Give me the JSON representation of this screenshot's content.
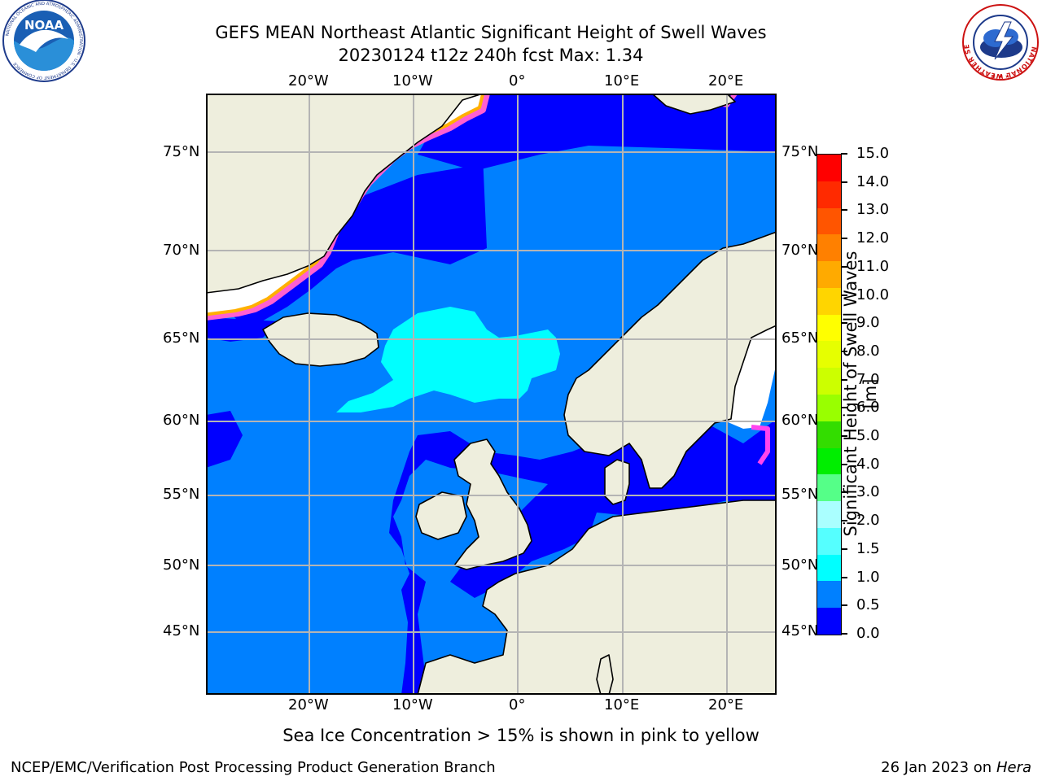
{
  "header": {
    "title_line1": "GEFS MEAN Northeast Atlantic Significant Height of Swell Waves",
    "title_line2": "20230124 t12z 240h fcst   Max: 1.34"
  },
  "logos": {
    "noaa_text": "NOAA",
    "noaa_ring_text": "NATIONAL OCEANIC AND ATMOSPHERIC ADMINISTRATION · U.S. DEPARTMENT OF COMMERCE",
    "nws_ring_text": "NATIONAL WEATHER SERVICE"
  },
  "map": {
    "lon_labels": [
      "20°W",
      "10°W",
      "0°",
      "10°E",
      "20°E"
    ],
    "lat_labels": [
      "75°N",
      "70°N",
      "65°N",
      "60°N",
      "55°N",
      "50°N",
      "45°N"
    ],
    "colors": {
      "land": "#eeeedd",
      "ice_free": "#ffffff",
      "wave_0_05": "#0000ff",
      "wave_05_10": "#0080ff",
      "wave_10_15": "#00ffff",
      "grid": "#b4b4b4"
    }
  },
  "colorbar": {
    "label": "Significant Height of Swell Waves [m]",
    "ticks": [
      "15.0",
      "14.0",
      "13.0",
      "12.0",
      "11.0",
      "10.0",
      "9.0",
      "8.0",
      "7.0",
      "6.0",
      "5.0",
      "4.0",
      "3.0",
      "2.0",
      "1.5",
      "1.0",
      "0.5",
      "0.0"
    ],
    "colors": [
      "#ff0000",
      "#ff2a00",
      "#ff5500",
      "#ff8000",
      "#ffaa00",
      "#ffd500",
      "#ffff00",
      "#e6ff00",
      "#ccff00",
      "#99ff00",
      "#33dd00",
      "#00ee00",
      "#55ff88",
      "#aaffff",
      "#55ffff",
      "#00ffff",
      "#0080ff",
      "#0000ff"
    ]
  },
  "footer": {
    "note": "Sea Ice Concentration > 15% is shown in pink to yellow",
    "left": "NCEP/EMC/Verification Post Processing Product Generation Branch",
    "right_date": "26 Jan 2023 on ",
    "right_machine": "Hera"
  }
}
